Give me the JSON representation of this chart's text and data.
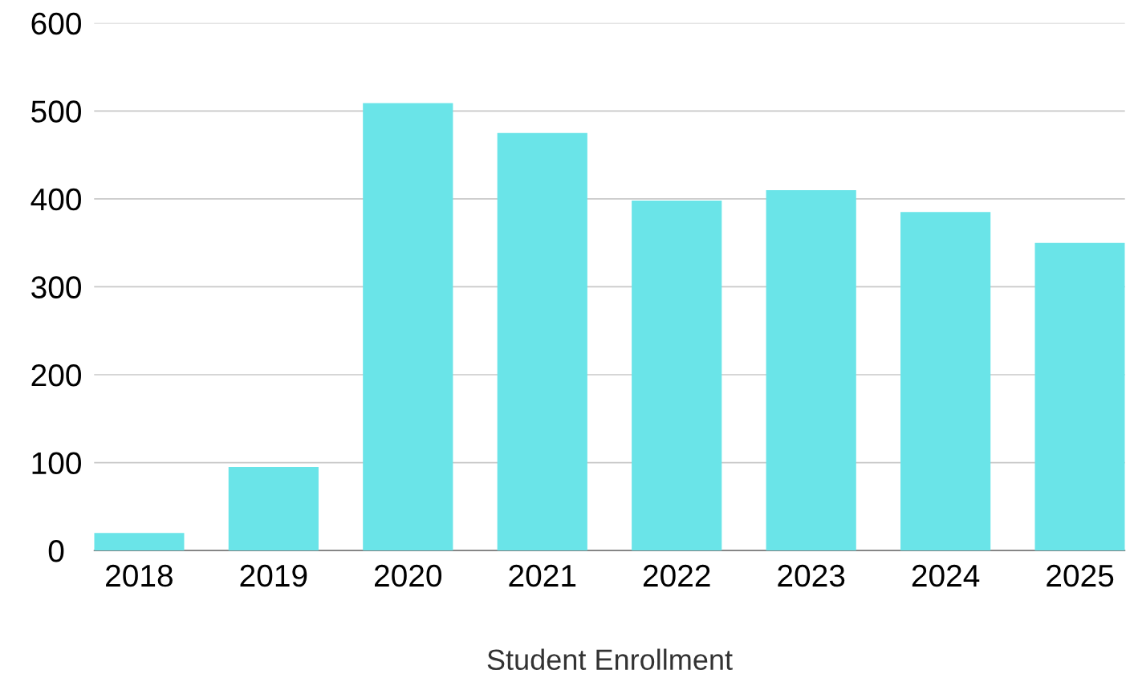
{
  "chart_data": {
    "type": "bar",
    "xlabel": "Student Enrollment",
    "categories": [
      "2018",
      "2019",
      "2020",
      "2021",
      "2022",
      "2023",
      "2024",
      "2025"
    ],
    "values": [
      20,
      95,
      509,
      475,
      398,
      410,
      385,
      350
    ],
    "color": "#6ae4e8",
    "ylim": [
      0,
      600
    ],
    "yticks": [
      0,
      100,
      200,
      300,
      400,
      500,
      600
    ],
    "grid": "y",
    "legend": false
  }
}
